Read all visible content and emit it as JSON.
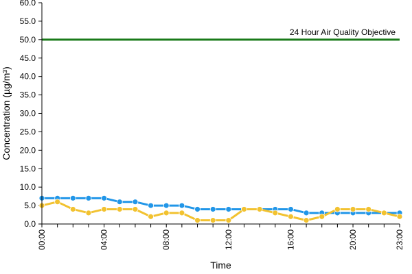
{
  "chart_data": {
    "type": "line",
    "xlabel": "Time",
    "ylabel": "Concentration (µg/m³)",
    "ylim": [
      0,
      60
    ],
    "yticks": [
      "0.0",
      "5.0",
      "10.0",
      "15.0",
      "20.0",
      "25.0",
      "30.0",
      "35.0",
      "40.0",
      "45.0",
      "50.0",
      "55.0",
      "60.0"
    ],
    "x": [
      "00:00",
      "01:00",
      "02:00",
      "03:00",
      "04:00",
      "05:00",
      "06:00",
      "07:00",
      "08:00",
      "09:00",
      "10:00",
      "11:00",
      "12:00",
      "13:00",
      "14:00",
      "15:00",
      "16:00",
      "17:00",
      "18:00",
      "19:00",
      "20:00",
      "21:00",
      "22:00",
      "23:00"
    ],
    "xtick_labels": [
      "00:00",
      "04:00",
      "08:00",
      "12:00",
      "16:00",
      "20:00",
      "23:00"
    ],
    "reference_line": {
      "label": "24 Hour Air Quality Objective",
      "value": 50,
      "color": "#1a7a1a"
    },
    "series": [
      {
        "color": "#2196e8",
        "values": [
          7,
          7,
          7,
          7,
          7,
          6,
          6,
          5,
          5,
          5,
          4,
          4,
          4,
          4,
          4,
          4,
          4,
          3,
          3,
          3,
          3,
          3,
          3,
          3
        ]
      },
      {
        "color": "#f2c230",
        "values": [
          5,
          6,
          4,
          3,
          4,
          4,
          4,
          2,
          3,
          3,
          1,
          1,
          1,
          4,
          4,
          3,
          2,
          1,
          2,
          4,
          4,
          4,
          3,
          2
        ]
      }
    ],
    "grid": false,
    "legend": "none"
  }
}
